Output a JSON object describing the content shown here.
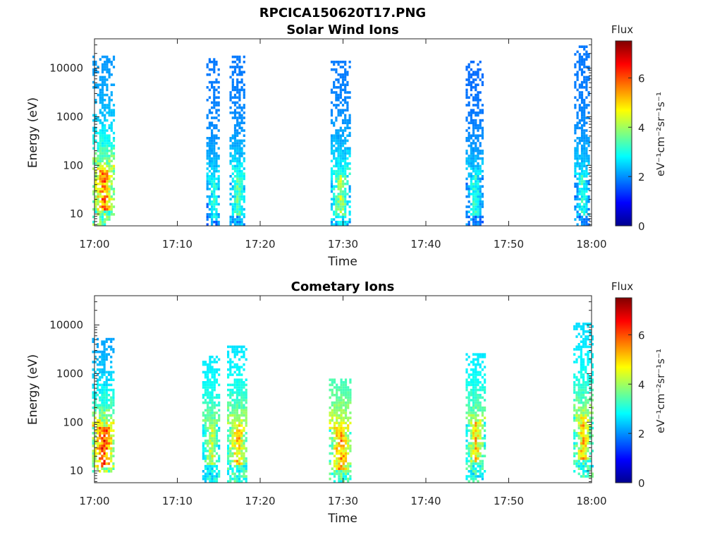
{
  "figure": {
    "title": "RPCICA150620T17.PNG",
    "colors": {
      "background": "#ffffff",
      "axis": "#262626"
    }
  },
  "colorbar": {
    "label": "Flux",
    "units": "eV⁻¹cm⁻²sr⁻¹s⁻¹",
    "range": [
      0,
      7.5
    ],
    "ticks": [
      "0",
      "2",
      "4",
      "6"
    ],
    "tick_values": [
      0,
      2,
      4,
      6
    ],
    "colormap": "jet"
  },
  "chart_data": [
    {
      "type": "heatmap",
      "title": "Solar Wind Ions",
      "xlabel": "Time",
      "ylabel": "Energy (eV)",
      "xticks": [
        "17:00",
        "17:10",
        "17:20",
        "17:30",
        "17:40",
        "17:50",
        "18:00"
      ],
      "xlim_minutes": [
        0,
        60
      ],
      "yticks": [
        "10",
        "100",
        "1000",
        "10000"
      ],
      "ylim": [
        5.7,
        40000
      ],
      "yscale": "log",
      "bursts": [
        {
          "center_min": 1.0,
          "width_min": 2.5,
          "emin": 8,
          "emax": 20000,
          "peak_energy": 40,
          "peak_flux": 6.5,
          "high_flux": 2.0
        },
        {
          "center_min": 14.3,
          "width_min": 1.6,
          "emin": 7,
          "emax": 18000,
          "peak_energy": 25,
          "peak_flux": 3.5,
          "high_flux": 1.8
        },
        {
          "center_min": 17.2,
          "width_min": 1.8,
          "emin": 6,
          "emax": 20000,
          "peak_energy": 30,
          "peak_flux": 4.0,
          "high_flux": 1.8
        },
        {
          "center_min": 29.6,
          "width_min": 2.2,
          "emin": 6,
          "emax": 16000,
          "peak_energy": 30,
          "peak_flux": 4.5,
          "high_flux": 1.8
        },
        {
          "center_min": 45.8,
          "width_min": 2.0,
          "emin": 6,
          "emax": 15000,
          "peak_energy": 30,
          "peak_flux": 3.5,
          "high_flux": 1.7
        },
        {
          "center_min": 58.8,
          "width_min": 1.8,
          "emin": 6,
          "emax": 30000,
          "peak_energy": 30,
          "peak_flux": 3.5,
          "high_flux": 1.8
        }
      ]
    },
    {
      "type": "heatmap",
      "title": "Cometary Ions",
      "xlabel": "Time",
      "ylabel": "Energy (eV)",
      "xticks": [
        "17:00",
        "17:10",
        "17:20",
        "17:30",
        "17:40",
        "17:50",
        "18:00"
      ],
      "xlim_minutes": [
        0,
        60
      ],
      "yticks": [
        "10",
        "100",
        "1000",
        "10000"
      ],
      "ylim": [
        5.7,
        40000
      ],
      "yscale": "log",
      "bursts": [
        {
          "center_min": 1.0,
          "width_min": 2.6,
          "emin": 12,
          "emax": 6000,
          "peak_energy": 40,
          "peak_flux": 7.0,
          "high_flux": 2.0
        },
        {
          "center_min": 14.0,
          "width_min": 2.0,
          "emin": 7,
          "emax": 2500,
          "peak_energy": 45,
          "peak_flux": 5.0,
          "high_flux": 2.5
        },
        {
          "center_min": 17.2,
          "width_min": 2.4,
          "emin": 8,
          "emax": 4000,
          "peak_energy": 45,
          "peak_flux": 5.8,
          "high_flux": 2.5
        },
        {
          "center_min": 29.6,
          "width_min": 2.6,
          "emin": 8,
          "emax": 800,
          "peak_energy": 35,
          "peak_flux": 6.2,
          "high_flux": 3.0
        },
        {
          "center_min": 45.9,
          "width_min": 2.2,
          "emin": 8,
          "emax": 2700,
          "peak_energy": 50,
          "peak_flux": 5.5,
          "high_flux": 2.5
        },
        {
          "center_min": 58.9,
          "width_min": 2.2,
          "emin": 10,
          "emax": 12000,
          "peak_energy": 60,
          "peak_flux": 5.8,
          "high_flux": 2.5
        }
      ]
    }
  ]
}
